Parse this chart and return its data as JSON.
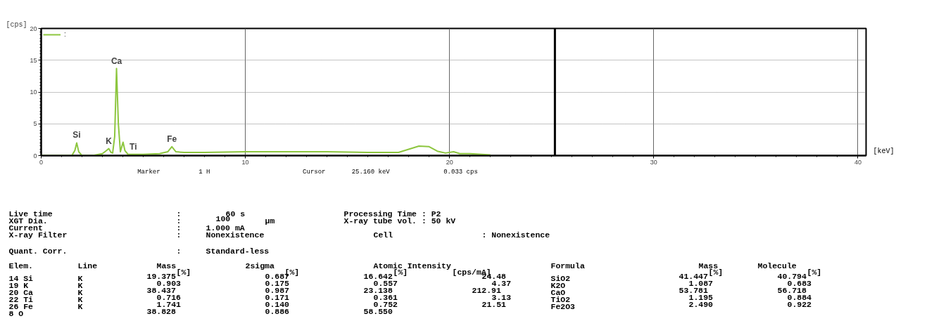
{
  "chart_data": {
    "type": "line",
    "xlabel": "[keV]",
    "ylabel": "[cps]",
    "xlim": [
      0,
      40.4
    ],
    "ylim": [
      0,
      20
    ],
    "xticks": [
      0,
      10,
      20,
      30,
      40
    ],
    "yticks": [
      0,
      5,
      10,
      15,
      20
    ],
    "grid": true,
    "legend": "top left",
    "marker": "none",
    "line_style": "solid",
    "series": [
      {
        "name": ":",
        "color": "#8dc63f",
        "x": [
          0,
          1.0,
          1.5,
          1.65,
          1.74,
          1.84,
          2.0,
          2.5,
          3.0,
          3.2,
          3.31,
          3.42,
          3.5,
          3.6,
          3.69,
          3.78,
          3.88,
          4.01,
          4.1,
          4.25,
          4.51,
          5.0,
          5.8,
          6.2,
          6.4,
          6.6,
          7.0,
          8.0,
          10.0,
          12.0,
          14.0,
          16.0,
          17.5,
          18.0,
          18.5,
          19.0,
          19.4,
          19.8,
          20.2,
          20.5,
          21.0,
          22.0
        ],
        "values": [
          0,
          0,
          0,
          0.8,
          2.0,
          0.6,
          0,
          0,
          0.3,
          0.8,
          1.1,
          0.5,
          0.4,
          3.0,
          13.7,
          5.0,
          0.6,
          2.1,
          0.8,
          0.2,
          0.2,
          0.2,
          0.3,
          0.6,
          1.4,
          0.6,
          0.5,
          0.5,
          0.6,
          0.6,
          0.6,
          0.5,
          0.5,
          1.0,
          1.5,
          1.4,
          0.7,
          0.4,
          0.6,
          0.3,
          0.3,
          0.1
        ]
      }
    ],
    "ref_lines": [
      {
        "axis": "x",
        "value": 25.16,
        "label": null,
        "color": "#000000"
      }
    ],
    "annotations": [
      {
        "text": "Si",
        "x": 1.74,
        "y": 2.0
      },
      {
        "text": "K",
        "x": 3.31,
        "y": 1.1
      },
      {
        "text": "Ca",
        "x": 3.69,
        "y": 13.7
      },
      {
        "text": "Ti",
        "x": 4.51,
        "y": 0.2
      },
      {
        "text": "Fe",
        "x": 6.4,
        "y": 1.4
      },
      "                     Marker    1 H              Cursor  25.160 keV     0.033 cps",
      "Live time        :    60 s        Processing Time : P2",
      "XGT Dia.         :   100  μm      X-ray tube vol. : 50 kV",
      "Current          :  1.000 mA",
      "X-ray Filter     :  Nonexistence     Cell       : Nonexistence",
      "Quant. Corr.     :  Standard-less",
      "Elem.  Line    Mass     2sigma       Atomic Intensity  Formula        Mass  Molecule",
      "                 [%]        [%]        [%]   [cps/mA]                  [%]       [%]",
      "14 Si  K      19.375      0.687     16.642      24.48  SiO2         41.447    40.794",
      "19 K   K       0.903      0.175      0.557       4.37  K2O           1.087     0.683",
      "20 Ca  K      38.437      0.987     23.138     212.91  CaO          53.781    56.718",
      "22 Ti  K       0.716      0.171      0.361       3.13  TiO2          1.195     0.884",
      "26 Fe  K       1.741      0.140      0.752      21.51  Fe2O3         2.490     0.922",
      "8 O           38.828      0.886     58.550"
    ]
  }
}
